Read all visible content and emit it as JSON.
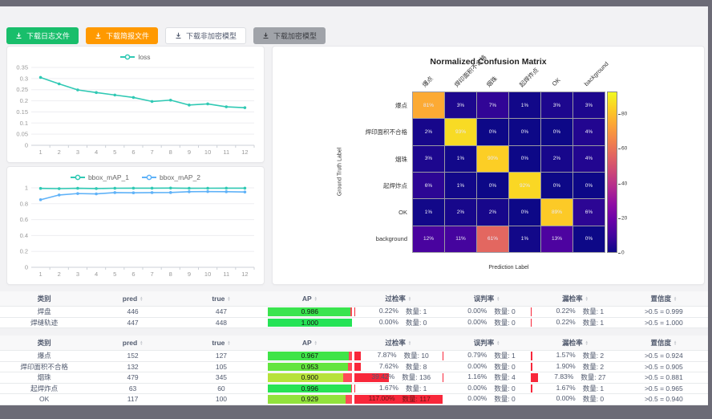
{
  "window": {
    "frame_color": "#6c6b76",
    "content_bg": "#f2f2f4"
  },
  "toolbar": {
    "buttons": [
      {
        "label": "下载日志文件",
        "bg": "#19be6b",
        "color": "#ffffff",
        "border": "none"
      },
      {
        "label": "下载简报文件",
        "bg": "#ff9900",
        "color": "#ffffff",
        "border": "none"
      },
      {
        "label": "下载非加密模型",
        "bg": "#ffffff",
        "color": "#515a6e",
        "border": "1px solid #dcdee2"
      },
      {
        "label": "下载加密模型",
        "bg": "#a0a3a9",
        "color": "#3b3d42",
        "border": "none"
      }
    ]
  },
  "chart_data": [
    {
      "type": "line",
      "legend_position": "top",
      "x": [
        1,
        2,
        3,
        4,
        5,
        6,
        7,
        8,
        9,
        10,
        11,
        12
      ],
      "series": [
        {
          "name": "loss",
          "color": "#30c9b4",
          "values": [
            0.305,
            0.276,
            0.249,
            0.237,
            0.226,
            0.215,
            0.197,
            0.203,
            0.181,
            0.186,
            0.173,
            0.169
          ]
        }
      ],
      "ylim": [
        0,
        0.35
      ],
      "yticks": [
        0,
        0.05,
        0.1,
        0.15,
        0.2,
        0.25,
        0.3,
        0.35
      ],
      "grid": true
    },
    {
      "type": "line",
      "legend_position": "top",
      "x": [
        1,
        2,
        3,
        4,
        5,
        6,
        7,
        8,
        9,
        10,
        11,
        12
      ],
      "series": [
        {
          "name": "bbox_mAP_1",
          "color": "#30c9b4",
          "values": [
            0.993,
            0.99,
            0.994,
            0.991,
            0.995,
            0.996,
            0.996,
            0.997,
            0.994,
            0.995,
            0.996,
            0.996
          ]
        },
        {
          "name": "bbox_mAP_2",
          "color": "#5fb2f8",
          "values": [
            0.85,
            0.91,
            0.928,
            0.924,
            0.94,
            0.937,
            0.94,
            0.941,
            0.951,
            0.953,
            0.951,
            0.948
          ]
        }
      ],
      "ylim": [
        0,
        1
      ],
      "yticks": [
        0,
        0.2,
        0.4,
        0.6,
        0.8,
        1
      ],
      "grid": true
    },
    {
      "type": "heatmap",
      "title": "Normalized Confusion Matrix",
      "xlabel": "Prediction Label",
      "ylabel": "Ground Truth Label",
      "categories": [
        "爆点",
        "焊印面积不合格",
        "烟珠",
        "起焊炸点",
        "OK",
        "background"
      ],
      "matrix": [
        [
          81,
          3,
          7,
          1,
          3,
          3
        ],
        [
          2,
          93,
          0,
          0,
          0,
          4
        ],
        [
          3,
          1,
          90,
          0,
          2,
          4
        ],
        [
          6,
          1,
          0,
          92,
          0,
          0
        ],
        [
          1,
          2,
          2,
          0,
          89,
          6
        ],
        [
          12,
          11,
          61,
          1,
          13,
          0
        ]
      ],
      "unit": "%",
      "colormap": "plasma",
      "vmin": 0,
      "vmax": 93,
      "colorbar_ticks": [
        0,
        20,
        40,
        60,
        80
      ]
    }
  ],
  "tables": [
    {
      "headers": [
        {
          "label": "类别",
          "sortable": false
        },
        {
          "label": "pred",
          "sortable": true
        },
        {
          "label": "true",
          "sortable": true
        },
        {
          "label": "AP",
          "sortable": true
        },
        {
          "label": "过检率",
          "sortable": true
        },
        {
          "label": "误判率",
          "sortable": true
        },
        {
          "label": "漏检率",
          "sortable": true
        },
        {
          "label": "置信度",
          "sortable": true
        }
      ],
      "rows": [
        {
          "name": "焊盘",
          "pred": "446",
          "true": "447",
          "ap": "0.986",
          "ap_value": 0.986,
          "ap_color": "#3ae44e",
          "overkill": {
            "pct": "0.22%",
            "value": 0.22,
            "count": "数量: 1"
          },
          "misjudge": {
            "pct": "0.00%",
            "value": 0,
            "count": "数量: 0"
          },
          "miss": {
            "pct": "0.22%",
            "value": 0.22,
            "count": "数量: 1"
          },
          "confidence": ">0.5 = 0.999"
        },
        {
          "name": "焊缝轨迹",
          "pred": "447",
          "true": "448",
          "ap": "1.000",
          "ap_value": 1.0,
          "ap_color": "#25e356",
          "overkill": {
            "pct": "0.00%",
            "value": 0,
            "count": "数量: 0"
          },
          "misjudge": {
            "pct": "0.00%",
            "value": 0,
            "count": "数量: 0"
          },
          "miss": {
            "pct": "0.22%",
            "value": 0.22,
            "count": "数量: 1"
          },
          "confidence": ">0.5 = 1.000"
        }
      ]
    },
    {
      "headers": [
        {
          "label": "类别",
          "sortable": false
        },
        {
          "label": "pred",
          "sortable": true
        },
        {
          "label": "true",
          "sortable": true
        },
        {
          "label": "AP",
          "sortable": true
        },
        {
          "label": "过检率",
          "sortable": true
        },
        {
          "label": "误判率",
          "sortable": true
        },
        {
          "label": "漏检率",
          "sortable": true
        },
        {
          "label": "置信度",
          "sortable": true
        }
      ],
      "rows": [
        {
          "name": "爆点",
          "pred": "152",
          "true": "127",
          "ap": "0.967",
          "ap_value": 0.967,
          "ap_color": "#3fe448",
          "overkill": {
            "pct": "7.87%",
            "value": 7.87,
            "count": "数量: 10"
          },
          "misjudge": {
            "pct": "0.79%",
            "value": 0.79,
            "count": "数量: 1"
          },
          "miss": {
            "pct": "1.57%",
            "value": 1.57,
            "count": "数量: 2"
          },
          "confidence": ">0.5 = 0.924"
        },
        {
          "name": "焊印面积不合格",
          "pred": "132",
          "true": "105",
          "ap": "0.953",
          "ap_value": 0.953,
          "ap_color": "#63e53e",
          "overkill": {
            "pct": "7.62%",
            "value": 7.62,
            "count": "数量: 8"
          },
          "misjudge": {
            "pct": "0.00%",
            "value": 0,
            "count": "数量: 0"
          },
          "miss": {
            "pct": "1.90%",
            "value": 1.9,
            "count": "数量: 2"
          },
          "confidence": ">0.5 = 0.905"
        },
        {
          "name": "烟珠",
          "pred": "479",
          "true": "345",
          "ap": "0.900",
          "ap_value": 0.9,
          "ap_color": "#b7e23a",
          "overkill": {
            "pct": "39.42%",
            "value": 39.42,
            "count": "数量: 136"
          },
          "misjudge": {
            "pct": "1.16%",
            "value": 1.16,
            "count": "数量: 4"
          },
          "miss": {
            "pct": "7.83%",
            "value": 7.83,
            "count": "数量: 27"
          },
          "confidence": ">0.5 = 0.881"
        },
        {
          "name": "起焊炸点",
          "pred": "63",
          "true": "60",
          "ap": "0.996",
          "ap_value": 0.996,
          "ap_color": "#27e355",
          "overkill": {
            "pct": "1.67%",
            "value": 1.67,
            "count": "数量: 1"
          },
          "misjudge": {
            "pct": "0.00%",
            "value": 0,
            "count": "数量: 0"
          },
          "miss": {
            "pct": "1.67%",
            "value": 1.67,
            "count": "数量: 1"
          },
          "confidence": ">0.5 = 0.965"
        },
        {
          "name": "OK",
          "pred": "117",
          "true": "100",
          "ap": "0.929",
          "ap_value": 0.929,
          "ap_color": "#92e23c",
          "overkill": {
            "pct": "117.00%",
            "value": 117,
            "count": "数量: 117"
          },
          "misjudge": {
            "pct": "0.00%",
            "value": 0,
            "count": "数量: 0"
          },
          "miss": {
            "pct": "0.00%",
            "value": 0,
            "count": "数量: 0"
          },
          "confidence": ">0.5 = 0.940"
        }
      ]
    }
  ]
}
